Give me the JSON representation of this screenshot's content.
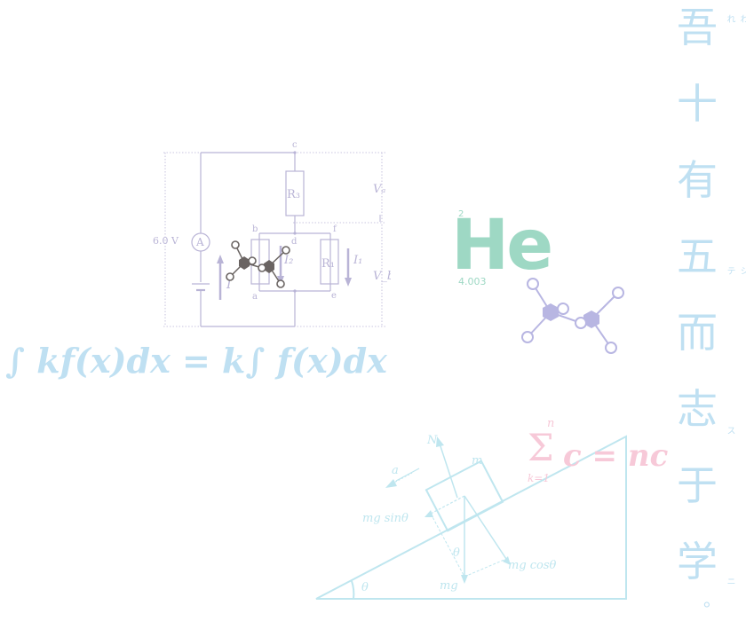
{
  "circuit": {
    "node_c": "c",
    "node_b": "b",
    "node_d": "d",
    "node_f": "f",
    "node_a": "a",
    "node_e": "e",
    "r3": "R₃",
    "r1": "R₁",
    "ammeter": "A",
    "voltage": "6.0 V",
    "va": "Vₐ",
    "vb": "V_b",
    "i": "I",
    "i1": "I₁",
    "i2": "I₂"
  },
  "element": {
    "number": "2",
    "symbol": "He",
    "mass": "4.003"
  },
  "formula": {
    "text": "∫ kf(x)dx = k∫ f(x)dx"
  },
  "sum_formula": {
    "upper": "n",
    "sigma": "Σ",
    "lower": "k=1",
    "body": "c = nc"
  },
  "incline": {
    "normal": "N",
    "accel": "a",
    "mass": "m",
    "mg_sin": "mg sinθ",
    "mg_cos": "mg cosθ",
    "mg": "mg",
    "theta": "θ",
    "theta2": "θ"
  },
  "vertical_text": {
    "chars": [
      "吾",
      "十",
      "有",
      "五",
      "而",
      "志",
      "于",
      "学"
    ],
    "ruby_1": "われ",
    "ruby_4": "ニシテ",
    "ruby_6": "ス",
    "ruby_8": "ニ",
    "end_mark": "。"
  },
  "colors": {
    "circuit": "#b9b4d6",
    "molecule_dark": "#6a6462",
    "molecule_light": "#b8b6e2",
    "element": "#9ed8c4",
    "formula": "#bfe0f2",
    "incline": "#bfe6ef",
    "sum": "#f7c9d8"
  }
}
